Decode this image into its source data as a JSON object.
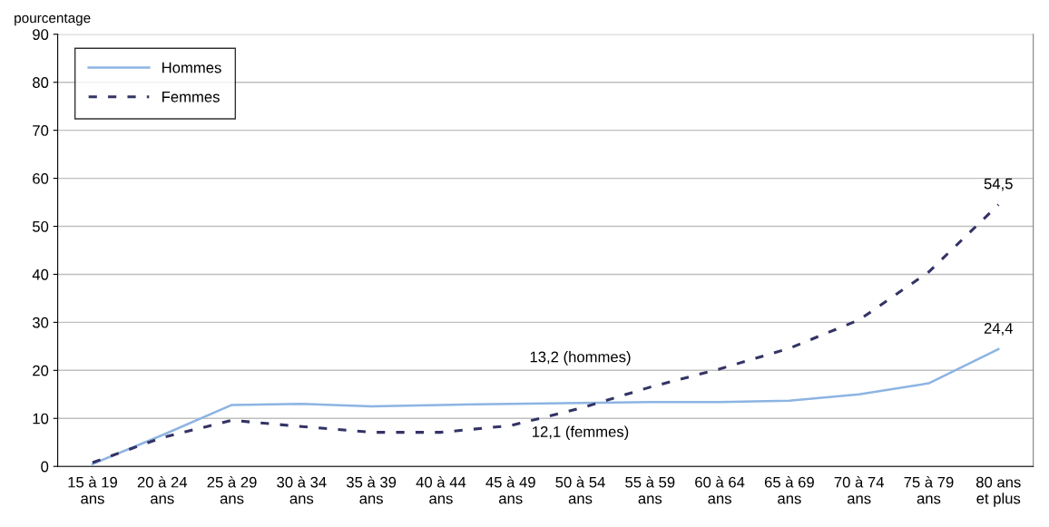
{
  "chart_data": {
    "type": "line",
    "ylabel": "pourcentage",
    "categories": [
      "15 à 19\nans",
      "20 à 24\nans",
      "25 à 29\nans",
      "30 à 34\nans",
      "35 à 39\nans",
      "40 à 44\nans",
      "45 à 49\nans",
      "50 à 54\nans",
      "55 à 59\nans",
      "60 à 64\nans",
      "65 à 69\nans",
      "70 à 74\nans",
      "75 à 79\nans",
      "80 ans\net plus"
    ],
    "series": [
      {
        "name": "Hommes",
        "color": "#8db4e2",
        "line_style": "solid",
        "values": [
          0.5,
          6.5,
          12.8,
          13.0,
          12.5,
          12.8,
          13.0,
          13.2,
          13.4,
          13.4,
          13.7,
          15.0,
          17.3,
          24.4
        ],
        "value_labels": [
          null,
          null,
          null,
          null,
          null,
          null,
          null,
          null,
          null,
          null,
          null,
          null,
          null,
          "24,4"
        ]
      },
      {
        "name": "Femmes",
        "color": "#333366",
        "line_style": "dashed",
        "values": [
          0.8,
          6.0,
          9.6,
          8.3,
          7.1,
          7.1,
          8.5,
          12.1,
          16.5,
          20.3,
          24.6,
          30.5,
          40.5,
          54.5
        ],
        "value_labels": [
          null,
          null,
          null,
          null,
          null,
          null,
          null,
          null,
          null,
          null,
          null,
          null,
          null,
          "54,5"
        ]
      }
    ],
    "annotations": [
      {
        "text": "13,2 (hommes)",
        "x": "50 à 54\nans",
        "y": 13.2
      },
      {
        "text": "12,1 (femmes)",
        "x": "50 à 54\nans",
        "y": 12.1
      }
    ],
    "ylim": [
      0,
      90
    ],
    "yticks": [
      0,
      10,
      20,
      30,
      40,
      50,
      60,
      70,
      80,
      90
    ],
    "grid": "y",
    "legend": "top left",
    "marker": "none"
  }
}
